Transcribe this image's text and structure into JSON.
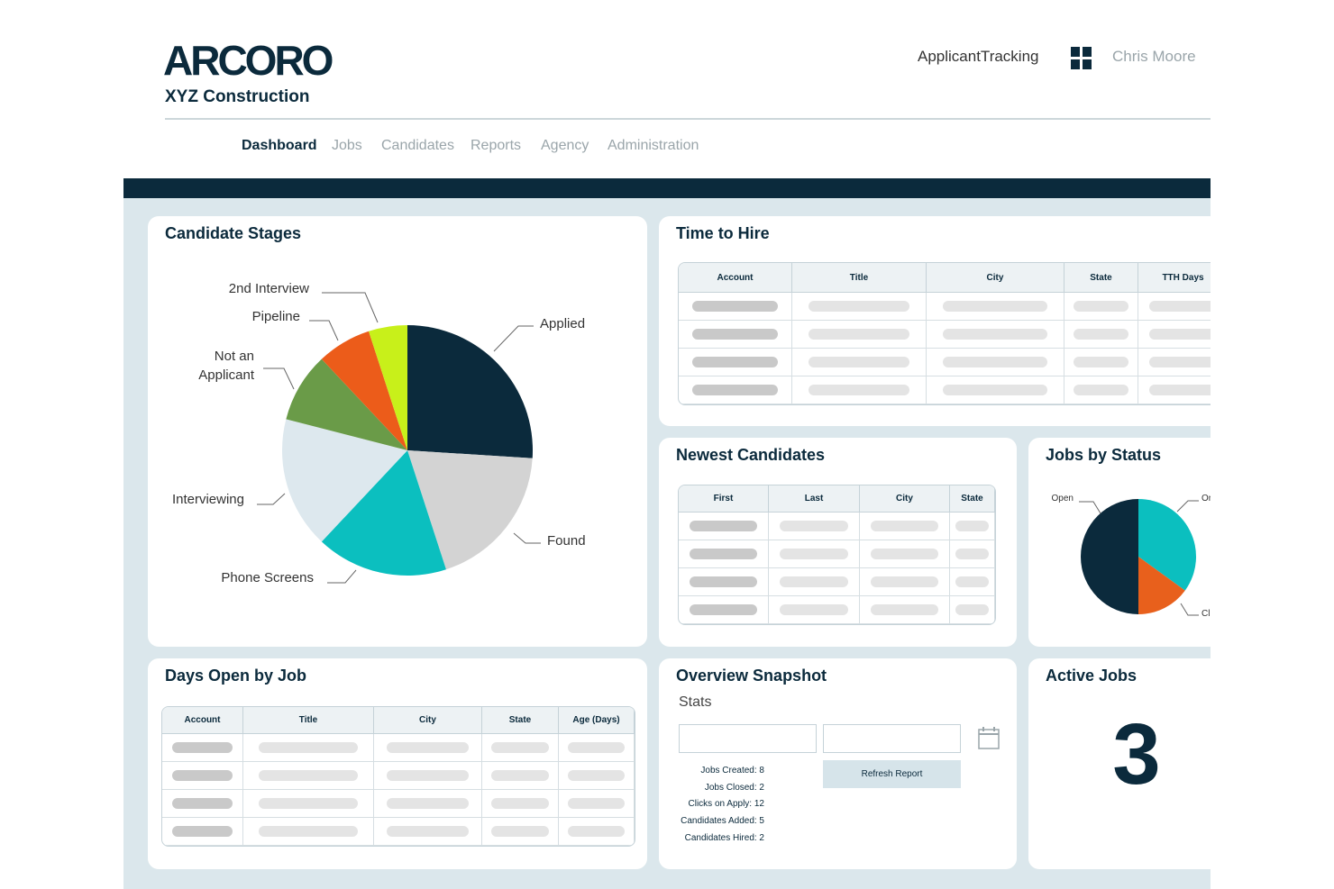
{
  "header": {
    "logo": "ARCORO",
    "company": "XYZ Construction",
    "app": "ApplicantTracking",
    "user": "Chris Moore"
  },
  "nav": [
    "Dashboard",
    "Jobs",
    "Candidates",
    "Reports",
    "Agency",
    "Administration"
  ],
  "panels": {
    "candidate_stages": {
      "title": "Candidate Stages",
      "chart_data": {
        "type": "pie",
        "categories": [
          "Applied",
          "Found",
          "Phone Screens",
          "Interviewing",
          "Not an Applicant",
          "Pipeline",
          "2nd Interview"
        ],
        "values": [
          26,
          19,
          17,
          17,
          9,
          7,
          5
        ],
        "colors": [
          "#0b2a3c",
          "#d3d3d3",
          "#0bbfbf",
          "#dde8ee",
          "#6a9b48",
          "#ec5c1a",
          "#c8f01a"
        ]
      }
    },
    "time_to_hire": {
      "title": "Time to Hire",
      "columns": [
        "Account",
        "Title",
        "City",
        "State",
        "TTH Days"
      ]
    },
    "newest_candidates": {
      "title": "Newest Candidates",
      "columns": [
        "First",
        "Last",
        "City",
        "State"
      ]
    },
    "jobs_by_status": {
      "title": "Jobs by Status",
      "chart_data": {
        "type": "pie",
        "categories": [
          "On",
          "Cl",
          "Open"
        ],
        "values": [
          35,
          15,
          50
        ],
        "colors": [
          "#0bbfbf",
          "#e8601c",
          "#0b2a3c"
        ]
      }
    },
    "days_open": {
      "title": "Days Open by Job",
      "columns": [
        "Account",
        "Title",
        "City",
        "State",
        "Age (Days)"
      ]
    },
    "overview": {
      "title": "Overview Snapshot",
      "subtitle": "Stats",
      "stats": [
        "Jobs Created: 8",
        "Jobs Closed: 2",
        "Clicks on Apply: 12",
        "Candidates Added: 5",
        "Candidates Hired: 2"
      ],
      "button": "Refresh Report"
    },
    "active_jobs": {
      "title": "Active Jobs",
      "value": 3
    }
  }
}
